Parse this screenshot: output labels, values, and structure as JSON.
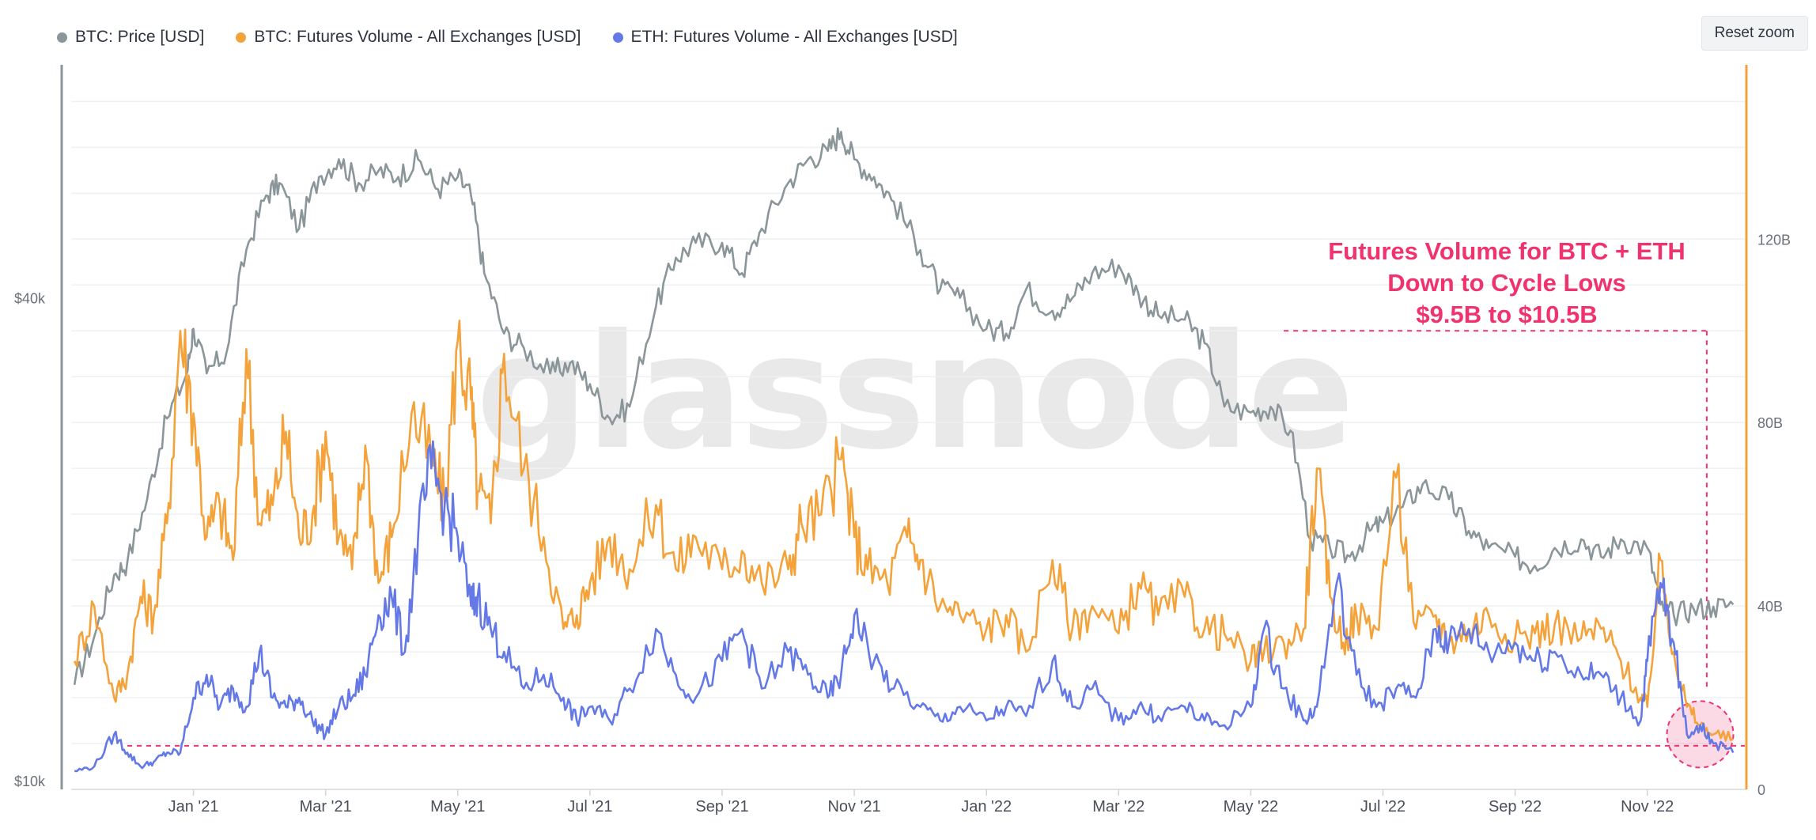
{
  "toolbar": {
    "reset_zoom_label": "Reset zoom"
  },
  "watermark": "glassnode",
  "legend": [
    {
      "label": "BTC: Price [USD]",
      "color": "#8a9699"
    },
    {
      "label": "BTC: Futures Volume - All Exchanges [USD]",
      "color": "#f4a23a"
    },
    {
      "label": "ETH: Futures Volume - All Exchanges [USD]",
      "color": "#6479e6"
    }
  ],
  "annotation": {
    "lines": [
      "Futures Volume for BTC + ETH",
      "Down to Cycle Lows",
      "$9.5B to $10.5B"
    ],
    "color": "#f0326e",
    "threshold_value_B": 9.5,
    "upper_threshold_value_B": 100
  },
  "chart_data": {
    "type": "line",
    "title": "",
    "x_tick_labels": [
      "Jan '21",
      "Mar '21",
      "May '21",
      "Jul '21",
      "Sep '21",
      "Nov '21",
      "Jan '22",
      "Mar '22",
      "May '22",
      "Jul '22",
      "Sep '22",
      "Nov '22"
    ],
    "x_tick_months": [
      1,
      3,
      5,
      7,
      9,
      11,
      13,
      15,
      17,
      19,
      21,
      23
    ],
    "x_range_months": [
      -0.85,
      24.5
    ],
    "left_axis": {
      "scale": "log",
      "ticks": [
        "$10k",
        "$40k"
      ],
      "tick_values": [
        10000,
        40000
      ],
      "range": [
        10000,
        80000
      ]
    },
    "right_axis": {
      "scale": "linear",
      "ticks": [
        "0",
        "40B",
        "80B",
        "120B"
      ],
      "tick_values": [
        0,
        40,
        80,
        120
      ],
      "range": [
        0,
        158
      ]
    },
    "series": [
      {
        "name": "BTC: Price [USD]",
        "color": "#8a9699",
        "axis": "left",
        "x": [
          -0.8,
          -0.5,
          -0.2,
          0.0,
          0.3,
          0.6,
          0.9,
          1.0,
          1.2,
          1.5,
          1.8,
          2.1,
          2.3,
          2.6,
          2.9,
          3.2,
          3.5,
          3.8,
          4.1,
          4.4,
          4.7,
          5.0,
          5.2,
          5.4,
          5.7,
          6.0,
          6.4,
          6.7,
          7.0,
          7.3,
          7.6,
          8.0,
          8.3,
          8.6,
          9.0,
          9.3,
          9.6,
          10.0,
          10.3,
          10.6,
          10.8,
          11.0,
          11.3,
          11.6,
          12.0,
          12.3,
          12.6,
          13.0,
          13.3,
          13.6,
          14.0,
          14.3,
          14.6,
          15.0,
          15.3,
          15.6,
          16.0,
          16.3,
          16.6,
          17.0,
          17.3,
          17.6,
          17.9,
          18.2,
          18.5,
          18.8,
          19.0,
          19.3,
          19.6,
          20.0,
          20.3,
          20.6,
          21.0,
          21.3,
          21.6,
          22.0,
          22.3,
          22.6,
          23.0,
          23.2,
          23.4,
          23.7,
          24.0,
          24.3
        ],
        "y": [
          13500,
          15500,
          18500,
          19200,
          23000,
          29000,
          33000,
          37500,
          33000,
          35000,
          47000,
          55000,
          57000,
          50000,
          58000,
          61000,
          57000,
          59000,
          58000,
          61000,
          56000,
          58000,
          55000,
          44000,
          37000,
          35500,
          33000,
          34000,
          32000,
          29000,
          30000,
          40000,
          46000,
          48000,
          48000,
          44000,
          50000,
          57000,
          61000,
          62500,
          66000,
          61000,
          58000,
          54000,
          47000,
          42000,
          41000,
          37500,
          37000,
          42000,
          39500,
          41000,
          44000,
          45000,
          41500,
          39000,
          38500,
          36000,
          30000,
          29500,
          30000,
          28000,
          20500,
          20000,
          19500,
          21000,
          21500,
          22500,
          24000,
          23000,
          21000,
          20000,
          19500,
          19000,
          20000,
          20500,
          19500,
          20500,
          20000,
          17000,
          16500,
          16800,
          16900,
          17000
        ]
      },
      {
        "name": "BTC: Futures Volume - All Exchanges [USD]",
        "color": "#f4a23a",
        "axis": "right",
        "x": [
          -0.8,
          -0.5,
          -0.2,
          0.0,
          0.2,
          0.4,
          0.6,
          0.8,
          1.0,
          1.2,
          1.4,
          1.6,
          1.8,
          2.0,
          2.2,
          2.4,
          2.6,
          2.8,
          3.0,
          3.2,
          3.4,
          3.6,
          3.8,
          4.0,
          4.3,
          4.6,
          4.8,
          5.0,
          5.2,
          5.3,
          5.5,
          5.7,
          6.0,
          6.3,
          6.6,
          6.8,
          7.0,
          7.3,
          7.6,
          8.0,
          8.3,
          8.6,
          9.0,
          9.3,
          9.6,
          10.0,
          10.2,
          10.5,
          10.8,
          11.0,
          11.2,
          11.5,
          11.8,
          12.0,
          12.3,
          12.6,
          13.0,
          13.3,
          13.6,
          14.0,
          14.3,
          14.6,
          15.0,
          15.3,
          15.6,
          16.0,
          16.3,
          16.6,
          17.0,
          17.2,
          17.5,
          17.8,
          18.0,
          18.2,
          18.4,
          18.6,
          18.9,
          19.2,
          19.5,
          19.8,
          20.0,
          20.3,
          20.6,
          21.0,
          21.3,
          21.6,
          22.0,
          22.3,
          22.6,
          22.9,
          23.0,
          23.2,
          23.4,
          23.6,
          23.8,
          24.0,
          24.3
        ],
        "y": [
          28,
          40,
          20,
          25,
          42,
          38,
          58,
          100,
          82,
          55,
          62,
          50,
          96,
          58,
          62,
          78,
          55,
          60,
          78,
          55,
          48,
          75,
          45,
          55,
          82,
          72,
          62,
          98,
          85,
          65,
          58,
          95,
          70,
          55,
          35,
          38,
          45,
          55,
          48,
          62,
          48,
          55,
          48,
          52,
          45,
          48,
          58,
          60,
          72,
          55,
          48,
          45,
          55,
          50,
          40,
          38,
          35,
          38,
          30,
          50,
          35,
          40,
          34,
          45,
          38,
          42,
          35,
          34,
          28,
          30,
          32,
          35,
          70,
          42,
          32,
          38,
          35,
          68,
          35,
          38,
          32,
          35,
          38,
          33,
          34,
          36,
          33,
          35,
          28,
          20,
          18,
          50,
          30,
          18,
          14,
          12,
          11
        ]
      },
      {
        "name": "ETH: Futures Volume - All Exchanges [USD]",
        "color": "#6479e6",
        "axis": "right",
        "x": [
          -0.8,
          -0.5,
          -0.2,
          0.0,
          0.2,
          0.4,
          0.6,
          0.8,
          1.0,
          1.2,
          1.4,
          1.6,
          1.8,
          2.0,
          2.2,
          2.4,
          2.6,
          2.8,
          3.0,
          3.2,
          3.4,
          3.6,
          3.8,
          4.0,
          4.2,
          4.4,
          4.6,
          4.8,
          5.0,
          5.2,
          5.3,
          5.5,
          5.7,
          6.0,
          6.3,
          6.6,
          6.8,
          7.0,
          7.3,
          7.6,
          8.0,
          8.3,
          8.6,
          9.0,
          9.3,
          9.6,
          10.0,
          10.3,
          10.6,
          10.8,
          11.0,
          11.3,
          11.6,
          12.0,
          12.3,
          12.6,
          13.0,
          13.3,
          13.6,
          14.0,
          14.3,
          14.6,
          15.0,
          15.3,
          15.6,
          16.0,
          16.3,
          16.6,
          17.0,
          17.2,
          17.5,
          17.8,
          18.0,
          18.3,
          18.6,
          18.9,
          19.2,
          19.5,
          19.8,
          20.0,
          20.3,
          20.6,
          21.0,
          21.3,
          21.6,
          22.0,
          22.3,
          22.6,
          22.9,
          23.0,
          23.2,
          23.4,
          23.6,
          23.8,
          24.0,
          24.3
        ],
        "y": [
          4,
          5,
          12,
          8,
          5,
          6,
          8,
          8,
          20,
          25,
          18,
          22,
          18,
          30,
          20,
          18,
          20,
          15,
          12,
          18,
          20,
          25,
          38,
          42,
          30,
          55,
          70,
          62,
          55,
          40,
          42,
          35,
          30,
          22,
          25,
          20,
          15,
          18,
          15,
          22,
          35,
          25,
          20,
          28,
          35,
          22,
          30,
          25,
          20,
          25,
          38,
          28,
          22,
          18,
          15,
          18,
          15,
          18,
          16,
          28,
          18,
          22,
          15,
          18,
          16,
          18,
          15,
          14,
          18,
          35,
          22,
          15,
          18,
          45,
          25,
          18,
          22,
          20,
          35,
          32,
          35,
          30,
          32,
          28,
          30,
          25,
          25,
          20,
          15,
          28,
          45,
          32,
          12,
          14,
          10,
          8
        ]
      }
    ],
    "grid": true,
    "legend_position": "top-left"
  }
}
